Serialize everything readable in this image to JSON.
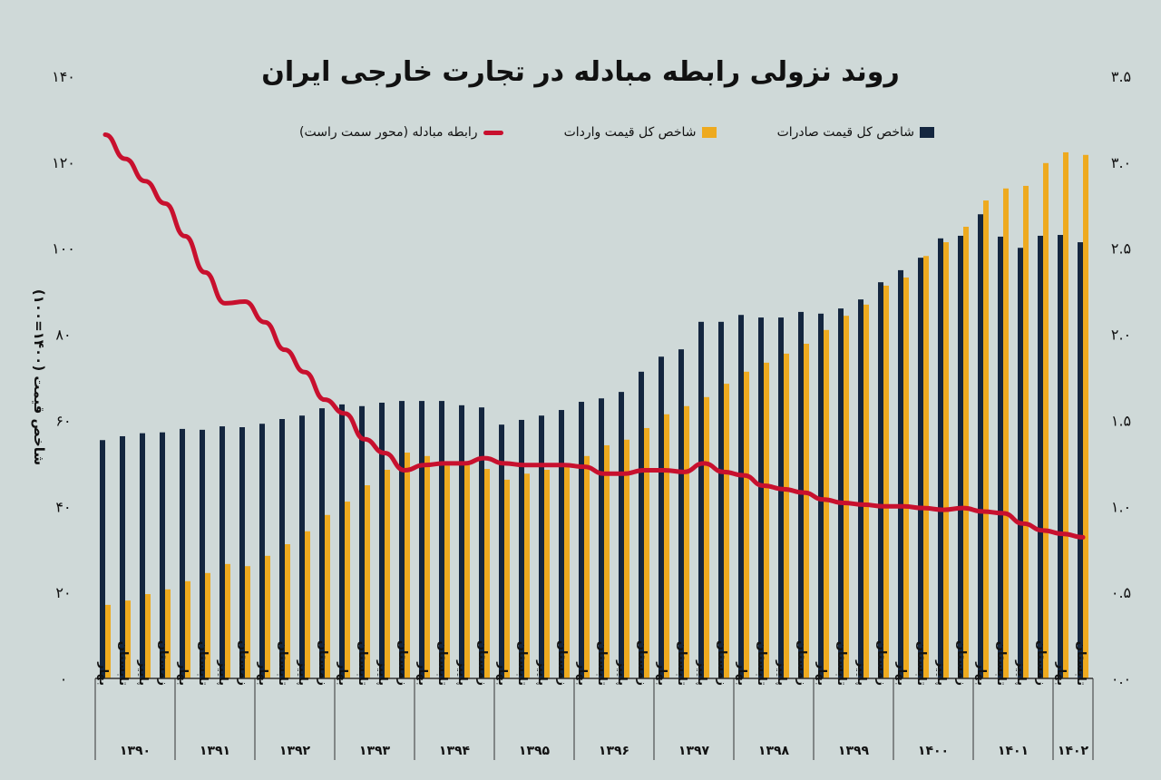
{
  "colors": {
    "background": "#cfd9d8",
    "exports": "#14263f",
    "imports": "#eeaa1f",
    "terms": "#c8102e",
    "axis": "#333333"
  },
  "chart_data": {
    "type": "bar+line",
    "title": "روند نزولی رابطه مبادله در تجارت خارجی ایران",
    "ylabel": "شاخص قیمت (۱۴۰۰=۱۰۰)",
    "ylabel_right": "",
    "ylim": [
      0,
      140
    ],
    "ylim_right": [
      0,
      3.5
    ],
    "yticks": [
      "۰",
      "۲۰",
      "۴۰",
      "۶۰",
      "۸۰",
      "۱۰۰",
      "۱۲۰",
      "۱۴۰"
    ],
    "yticks_right": [
      "۰.۰",
      "۰.۵",
      "۱.۰",
      "۱.۵",
      "۲.۰",
      "۲.۵",
      "۳.۰",
      "۳.۵"
    ],
    "grid": false,
    "legend_placement": "top",
    "years": [
      {
        "label": "۱۳۹۰",
        "seasons": [
          "بهار",
          "تابستان",
          "پاییز",
          "زمستان"
        ]
      },
      {
        "label": "۱۳۹۱",
        "seasons": [
          "بهار",
          "تابستان",
          "پاییز",
          "زمستان"
        ]
      },
      {
        "label": "۱۳۹۲",
        "seasons": [
          "بهار",
          "تابستان",
          "پاییز",
          "زمستان"
        ]
      },
      {
        "label": "۱۳۹۳",
        "seasons": [
          "بهار",
          "تابستان",
          "پاییز",
          "زمستان"
        ]
      },
      {
        "label": "۱۳۹۴",
        "seasons": [
          "بهار",
          "تابستان",
          "پاییز",
          "زمستان"
        ]
      },
      {
        "label": "۱۳۹۵",
        "seasons": [
          "بهار",
          "تابستان",
          "پاییز",
          "زمستان"
        ]
      },
      {
        "label": "۱۳۹۶",
        "seasons": [
          "بهار",
          "تابستان",
          "پاییز",
          "زمستان"
        ]
      },
      {
        "label": "۱۳۹۷",
        "seasons": [
          "بهار",
          "تابستان",
          "پاییز",
          "زمستان"
        ]
      },
      {
        "label": "۱۳۹۸",
        "seasons": [
          "بهار",
          "تابستان",
          "پاییز",
          "زمستان"
        ]
      },
      {
        "label": "۱۳۹۹",
        "seasons": [
          "بهار",
          "تابستان",
          "پاییز",
          "زمستان"
        ]
      },
      {
        "label": "۱۴۰۰",
        "seasons": [
          "بهار",
          "تابستان",
          "پاییز",
          "زمستان"
        ]
      },
      {
        "label": "۱۴۰۱",
        "seasons": [
          "بهار",
          "تابستان",
          "پاییز",
          "زمستان"
        ]
      },
      {
        "label": "۱۴۰۲",
        "seasons": [
          "بهار",
          "تابستان"
        ]
      }
    ],
    "series": [
      {
        "name": "شاخص کل قیمت صادرات",
        "type": "bar",
        "axis": "left",
        "values": [
          55.4,
          56.3,
          57.0,
          57.2,
          58.0,
          57.8,
          58.6,
          58.4,
          59.2,
          60.3,
          61.1,
          62.8,
          63.7,
          63.3,
          64.1,
          64.5,
          64.5,
          64.5,
          63.5,
          63.0,
          59.0,
          60.1,
          61.1,
          62.4,
          64.3,
          65.1,
          66.6,
          71.3,
          74.8,
          76.5,
          82.9,
          82.9,
          84.5,
          83.9,
          83.9,
          85.2,
          84.8,
          86.0,
          88.1,
          92.1,
          94.9,
          97.8,
          102.3,
          102.9,
          107.9,
          102.7,
          100.1,
          102.9,
          103.1,
          101.4
        ]
      },
      {
        "name": "شاخص کل قیمت واردات",
        "type": "bar",
        "axis": "left",
        "values": [
          17.1,
          18.1,
          19.6,
          20.7,
          22.6,
          24.5,
          26.6,
          26.1,
          28.5,
          31.2,
          34.2,
          38.0,
          41.1,
          44.9,
          48.5,
          52.5,
          51.7,
          49.5,
          50.2,
          48.7,
          46.2,
          47.6,
          48.5,
          49.1,
          51.7,
          54.2,
          55.5,
          58.2,
          61.4,
          63.3,
          65.4,
          68.5,
          71.3,
          73.4,
          75.5,
          77.8,
          81.0,
          84.3,
          86.9,
          91.3,
          93.2,
          98.2,
          101.4,
          105.0,
          111.1,
          113.9,
          114.5,
          119.8,
          122.3,
          121.7
        ]
      },
      {
        "name": "رابطه مبادله (محور سمت راست)",
        "type": "line",
        "axis": "right",
        "values": [
          3.16,
          3.02,
          2.89,
          2.76,
          2.57,
          2.36,
          2.18,
          2.19,
          2.07,
          1.91,
          1.78,
          1.62,
          1.54,
          1.39,
          1.31,
          1.21,
          1.24,
          1.25,
          1.25,
          1.28,
          1.25,
          1.24,
          1.24,
          1.24,
          1.23,
          1.19,
          1.19,
          1.21,
          1.21,
          1.2,
          1.25,
          1.2,
          1.18,
          1.12,
          1.1,
          1.08,
          1.04,
          1.02,
          1.01,
          1.0,
          1.0,
          0.99,
          0.98,
          0.99,
          0.97,
          0.96,
          0.9,
          0.86,
          0.84,
          0.82
        ]
      }
    ]
  }
}
